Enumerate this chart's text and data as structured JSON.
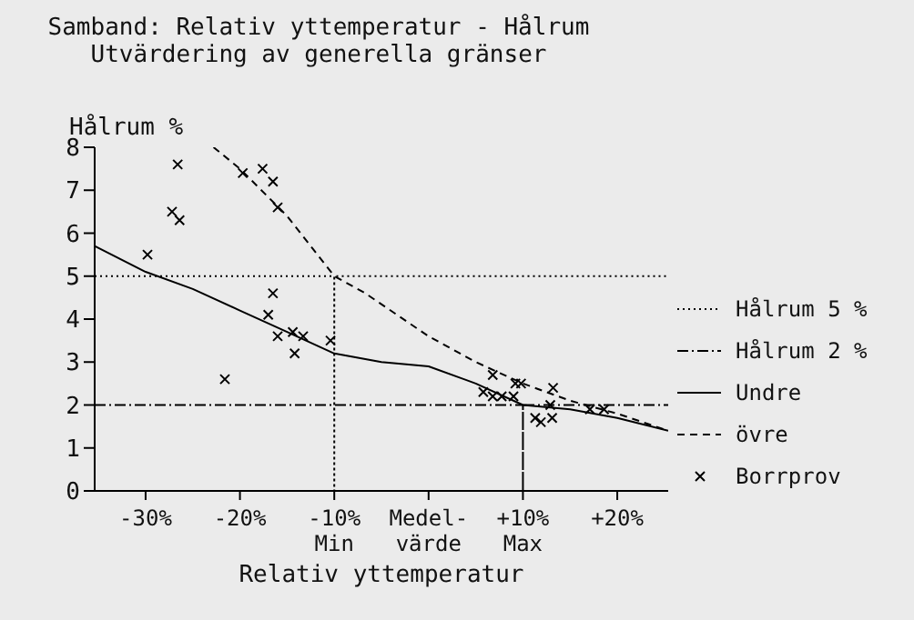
{
  "chart_data": {
    "type": "line",
    "title": "Samband: Relativ yttemperatur - Hålrum",
    "subtitle": "Utvärdering av generella gränser",
    "xlabel": "Relativ yttemperatur",
    "ylabel": "Hålrum %",
    "xlim": [
      -35.4,
      25.4
    ],
    "xticks": [
      {
        "value": -30,
        "label": "-30%"
      },
      {
        "value": -20,
        "label": "-20%"
      },
      {
        "value": -10,
        "label": "-10%\nMin"
      },
      {
        "value": 0,
        "label": "Medel-\nvärde"
      },
      {
        "value": 10,
        "label": "+10%\nMax"
      },
      {
        "value": 20,
        "label": "+20%"
      }
    ],
    "ylim": [
      0,
      8
    ],
    "yticks": [
      0,
      1,
      2,
      3,
      4,
      5,
      6,
      7,
      8
    ],
    "legend": "right",
    "series": [
      {
        "name": "Hålrum 5 %",
        "color": "#000000",
        "line_style": "dotted",
        "x": [
          -35.4,
          -10,
          -10,
          -10,
          25.4
        ],
        "values": [
          5,
          5,
          0,
          5,
          5
        ]
      },
      {
        "name": "Hålrum 2 %",
        "color": "#000000",
        "line_style": "dashdot",
        "x": [
          -35.4,
          10,
          10,
          10,
          25.4
        ],
        "values": [
          2,
          2,
          0,
          2,
          2
        ]
      },
      {
        "name": "Undre",
        "color": "#000000",
        "line_style": "solid",
        "x": [
          -35.4,
          -30,
          -25,
          -20,
          -15,
          -10,
          -5,
          0,
          5,
          10,
          15,
          20,
          25.4
        ],
        "values": [
          5.7,
          5.1,
          4.7,
          4.2,
          3.7,
          3.2,
          3.0,
          2.9,
          2.5,
          2.0,
          1.9,
          1.7,
          1.4
        ]
      },
      {
        "name": "övre",
        "color": "#000000",
        "line_style": "dashed",
        "x": [
          -22.8,
          -20,
          -15,
          -10,
          -6.7,
          0,
          5,
          10,
          15,
          20,
          25.4
        ],
        "values": [
          8,
          7.5,
          6.4,
          5.0,
          4.6,
          3.6,
          3.0,
          2.5,
          2.1,
          1.8,
          1.4
        ]
      },
      {
        "name": "Borrprov",
        "type": "scatter",
        "color": "#000000",
        "marker": "cross",
        "x": [
          -26.6,
          -27.2,
          -26.4,
          -29.8,
          -19.7,
          -17.6,
          -16.5,
          -16.0,
          -16.5,
          -17.0,
          -16.0,
          -14.4,
          -13.3,
          -14.2,
          -10.4,
          -21.6,
          6.8,
          9.2,
          9.8,
          13.2,
          5.8,
          6.8,
          7.75,
          9.0,
          12.9,
          11.3,
          11.9,
          13.1,
          17.1,
          18.6
        ],
        "values": [
          7.6,
          6.5,
          6.3,
          5.5,
          7.4,
          7.5,
          7.2,
          6.6,
          4.6,
          4.1,
          3.6,
          3.7,
          3.6,
          3.2,
          3.5,
          2.6,
          2.7,
          2.5,
          2.5,
          2.4,
          2.3,
          2.2,
          2.2,
          2.2,
          2.0,
          1.7,
          1.6,
          1.7,
          1.9,
          1.9
        ]
      }
    ]
  }
}
